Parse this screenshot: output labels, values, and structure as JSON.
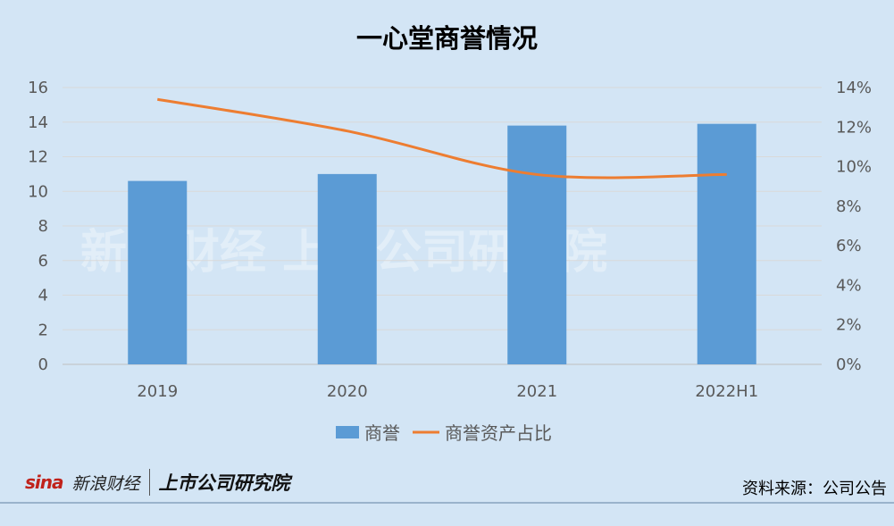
{
  "chart_data": {
    "type": "bar",
    "title": "一心堂商誉情况",
    "categories": [
      "2019",
      "2020",
      "2021",
      "2022H1"
    ],
    "series": [
      {
        "name": "商誉",
        "type": "bar",
        "axis": "left",
        "values": [
          10.6,
          11.0,
          13.8,
          13.9
        ],
        "color": "#5b9bd5"
      },
      {
        "name": "商誉资产占比",
        "type": "line",
        "axis": "right",
        "values": [
          13.4,
          11.8,
          9.6,
          9.6
        ],
        "color": "#ed7d31"
      }
    ],
    "y_left": {
      "min": 0,
      "max": 16,
      "step": 2,
      "ticks": [
        "0",
        "2",
        "4",
        "6",
        "8",
        "10",
        "12",
        "14",
        "16"
      ]
    },
    "y_right": {
      "min": 0,
      "max": 14,
      "step": 2,
      "ticks": [
        "0%",
        "2%",
        "4%",
        "6%",
        "8%",
        "10%",
        "12%",
        "14%"
      ]
    },
    "grid": true,
    "legend_position": "bottom"
  },
  "footer": {
    "brand_logo": "sina",
    "brand_name": "新浪财经",
    "brand_institute": "上市公司研究院",
    "source": "资料来源：公司公告"
  },
  "watermark": "新浪财经 上市公司研究院"
}
